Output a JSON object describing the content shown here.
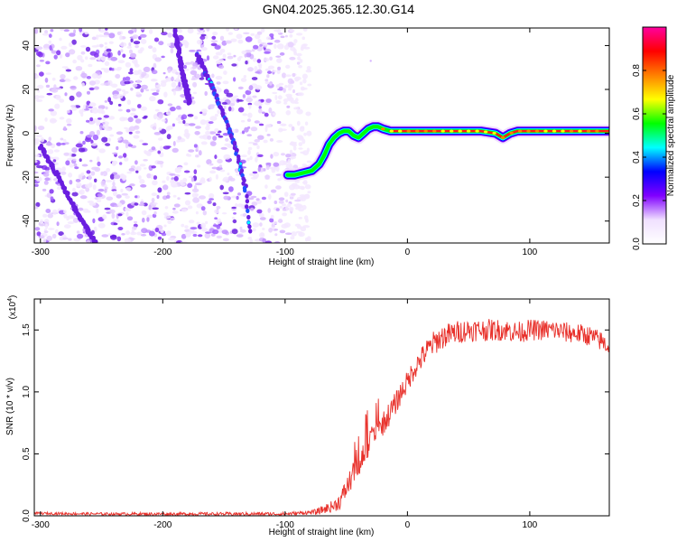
{
  "title": "GN04.2025.365.12.30.G14",
  "chart_data": [
    {
      "type": "heatmap",
      "name": "spectrogram",
      "xlabel": "Height of straight line (km)",
      "ylabel": "Frequency (Hz)",
      "xlim": [
        -305,
        165
      ],
      "ylim": [
        -50,
        48
      ],
      "xticks": [
        -300,
        -200,
        -100,
        0,
        100
      ],
      "yticks": [
        -40,
        -20,
        0,
        20,
        40
      ],
      "colorbar": {
        "label": "Normalized spectral amplitude",
        "range": [
          0,
          1
        ],
        "ticks": [
          "0.0",
          "0.2",
          "0.4",
          "0.6",
          "0.8"
        ],
        "tick_values": [
          0.0,
          0.2,
          0.4,
          0.6,
          0.8
        ],
        "colors": [
          "#ffffff",
          "#f0e0ff",
          "#8000ff",
          "#0000ff",
          "#00ffff",
          "#00ff00",
          "#ffff00",
          "#ff8000",
          "#ff0000",
          "#ff00a0"
        ]
      },
      "noise_region_x": [
        -305,
        -80
      ],
      "signal_track": {
        "x": [
          -98,
          -92,
          -85,
          -78,
          -72,
          -68,
          -64,
          -60,
          -56,
          -52,
          -48,
          -44,
          -40,
          -36,
          -32,
          -28,
          -24,
          -20,
          -14,
          -8,
          0,
          20,
          40,
          60,
          72,
          78,
          84,
          90,
          100,
          120,
          140,
          165
        ],
        "y": [
          -19,
          -19,
          -18,
          -17,
          -14,
          -10,
          -5,
          -2,
          0,
          1,
          1,
          -1,
          -2,
          0,
          2,
          3,
          3,
          2,
          1,
          1,
          1,
          1,
          1,
          1,
          0,
          -2,
          0,
          1,
          1,
          1,
          1,
          1
        ]
      },
      "diagonal_streaks": [
        {
          "x": [
            -172,
            -160,
            -150,
            -140,
            -132,
            -128
          ],
          "y": [
            36,
            22,
            8,
            -8,
            -26,
            -45
          ]
        },
        {
          "x": [
            -300,
            -285,
            -270,
            -255
          ],
          "y": [
            -6,
            -20,
            -36,
            -50
          ]
        },
        {
          "x": [
            -190,
            -185,
            -178
          ],
          "y": [
            48,
            30,
            14
          ]
        }
      ]
    },
    {
      "type": "line",
      "name": "snr",
      "xlabel": "Height of straight line (km)",
      "ylabel": "SNR (10 * v/v)",
      "y_scale_label": "(x10",
      "y_scale_exponent": "4",
      "y_scale_suffix": ")",
      "xlim": [
        -305,
        165
      ],
      "ylim": [
        0,
        1.75
      ],
      "xticks": [
        -300,
        -200,
        -100,
        0,
        100
      ],
      "yticks": [
        0.0,
        0.5,
        1.0,
        1.5
      ],
      "ytick_labels": [
        "0.0",
        "0.5",
        "1.0",
        "1.5"
      ],
      "color": "#e8302a",
      "series": {
        "x": [
          -305,
          -250,
          -200,
          -150,
          -100,
          -75,
          -60,
          -55,
          -50,
          -45,
          -40,
          -35,
          -30,
          -25,
          -20,
          -15,
          -10,
          -5,
          0,
          5,
          10,
          15,
          20,
          25,
          30,
          40,
          50,
          60,
          70,
          80,
          90,
          100,
          110,
          120,
          130,
          140,
          150,
          160,
          165
        ],
        "y": [
          0.02,
          0.015,
          0.015,
          0.015,
          0.015,
          0.03,
          0.08,
          0.12,
          0.22,
          0.32,
          0.42,
          0.52,
          0.6,
          0.66,
          0.74,
          0.82,
          0.9,
          1.0,
          1.08,
          1.18,
          1.25,
          1.32,
          1.38,
          1.42,
          1.45,
          1.48,
          1.5,
          1.5,
          1.5,
          1.5,
          1.48,
          1.5,
          1.5,
          1.5,
          1.48,
          1.47,
          1.45,
          1.4,
          1.36
        ]
      },
      "noise_amplitude_by_x": {
        "x": [
          -305,
          -80,
          -60,
          -40,
          -20,
          0,
          20,
          60,
          165
        ],
        "amp": [
          0.01,
          0.015,
          0.05,
          0.12,
          0.1,
          0.09,
          0.1,
          0.09,
          0.08
        ]
      }
    }
  ]
}
